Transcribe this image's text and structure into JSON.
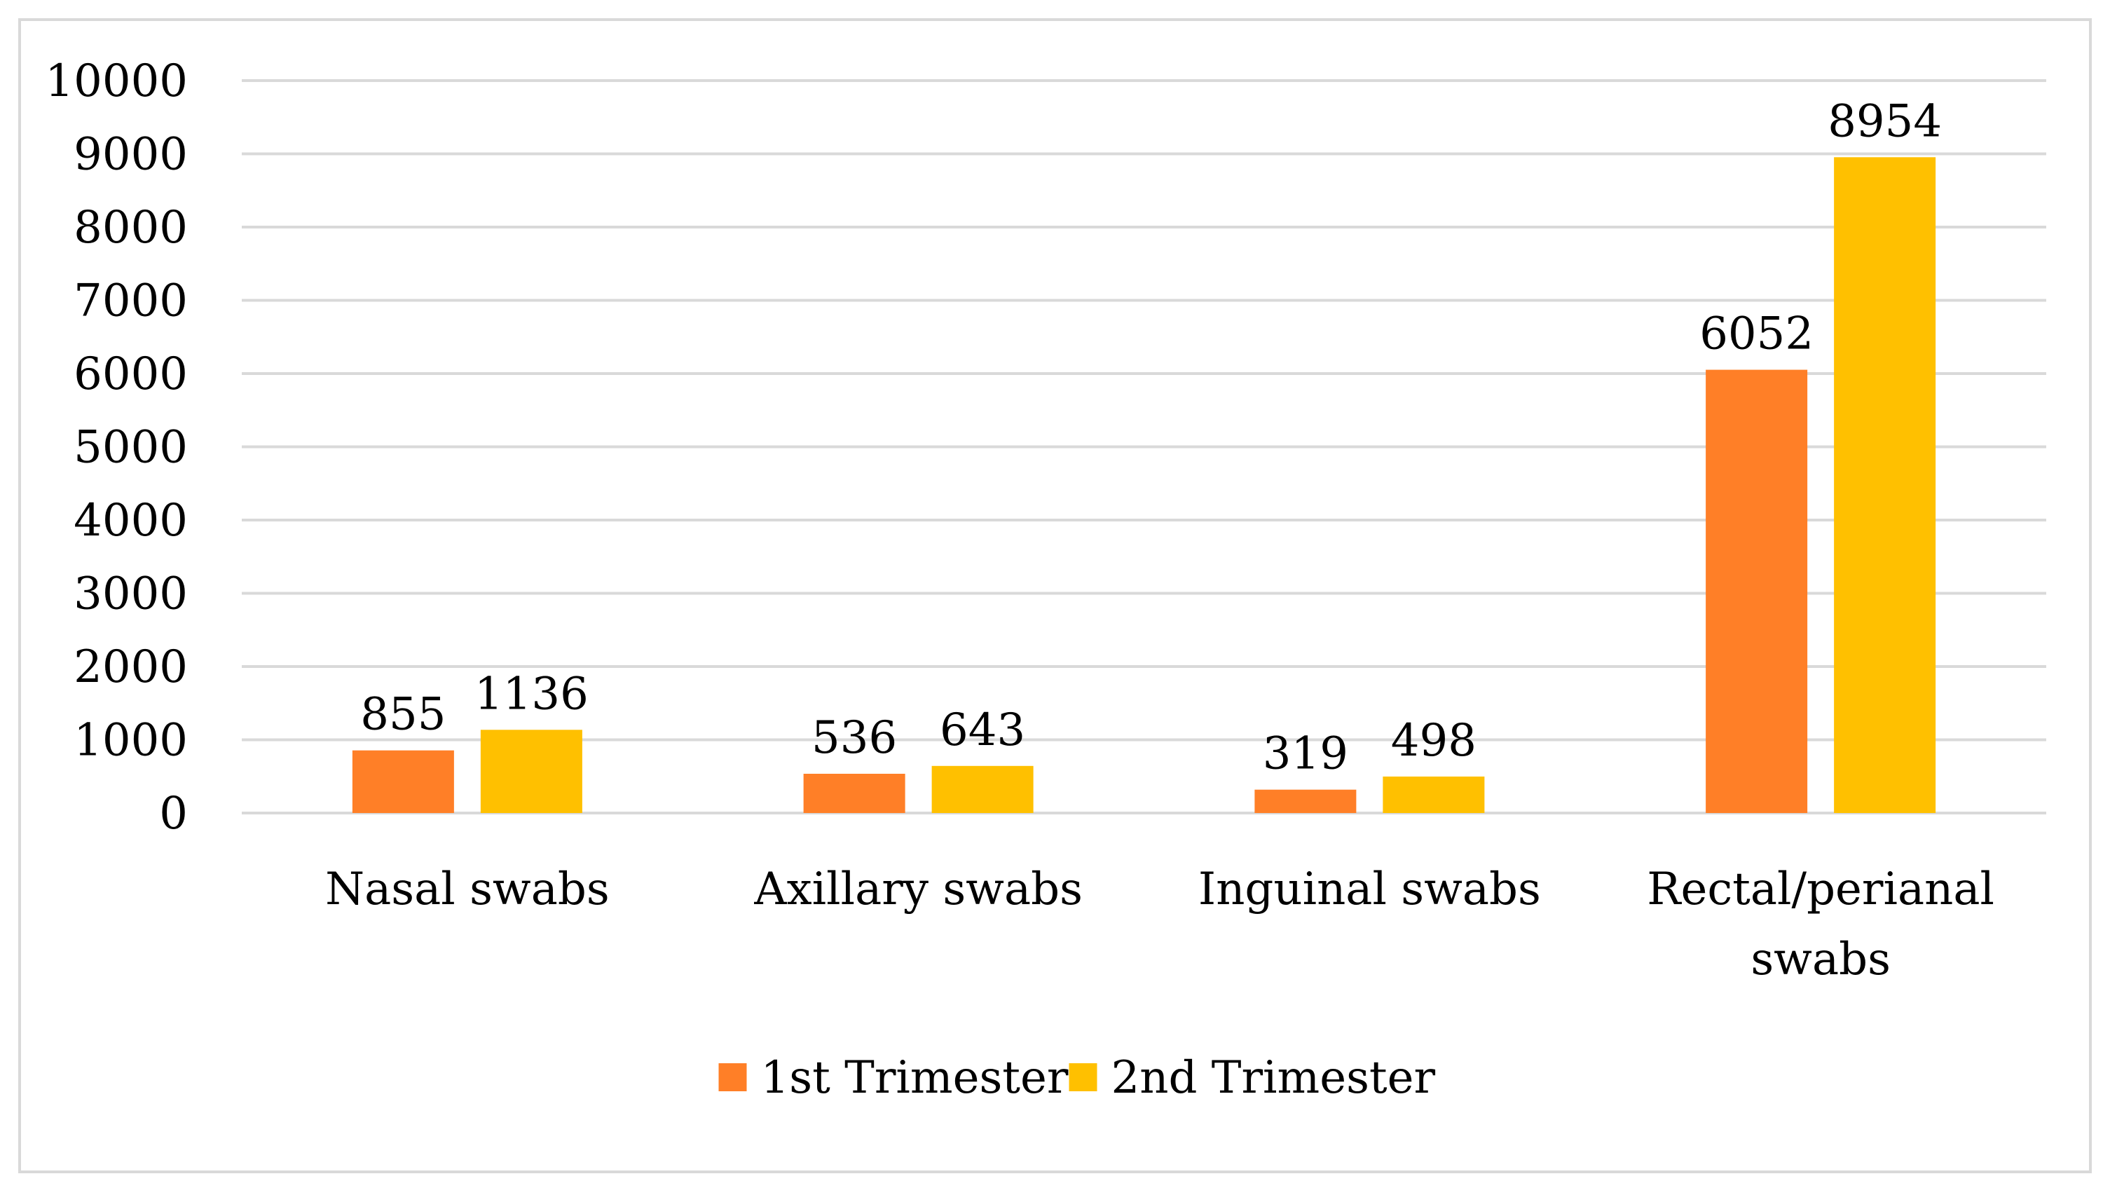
{
  "chart_data": {
    "type": "bar",
    "title": "",
    "xlabel": "",
    "ylabel": "",
    "categories": [
      [
        "Nasal swabs"
      ],
      [
        "Axillary swabs"
      ],
      [
        "Inguinal swabs"
      ],
      [
        "Rectal/perianal",
        "swabs"
      ]
    ],
    "series": [
      {
        "name": "1st Trimester",
        "color": "#FF7F27",
        "values": [
          855,
          536,
          319,
          6052
        ]
      },
      {
        "name": "2nd Trimester",
        "color": "#FFC000",
        "values": [
          1136,
          643,
          498,
          8954
        ]
      }
    ],
    "ylim": [
      0,
      10000
    ],
    "yticks": [
      0,
      1000,
      2000,
      3000,
      4000,
      5000,
      6000,
      7000,
      8000,
      9000,
      10000
    ],
    "grid": true,
    "legend_position": "bottom-center",
    "data_labels": true
  },
  "colors": {
    "frame_border": "#D9D9D9",
    "gridline": "#D9D9D9"
  }
}
